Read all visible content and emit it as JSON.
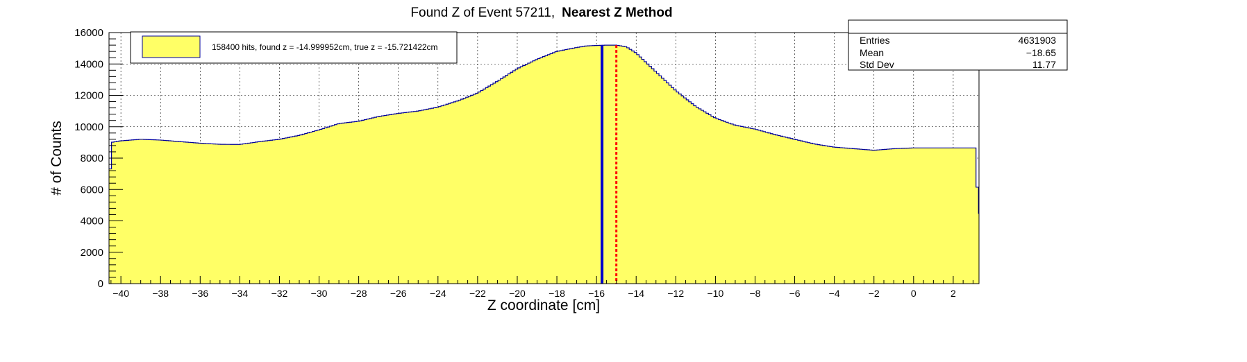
{
  "title": {
    "prefix": "Found Z of Event 57211,",
    "bold": "Nearest Z Method"
  },
  "legend": {
    "entry": "158400 hits, found z = -14.999952cm, true z = -15.721422cm"
  },
  "stats": {
    "rows": [
      {
        "label": "Entries",
        "value": "4631903"
      },
      {
        "label": "Mean",
        "value": "−18.65"
      },
      {
        "label": "Std Dev",
        "value": "11.77"
      }
    ]
  },
  "colors": {
    "fill": "#ffff66",
    "outline": "#000099",
    "found_line": "#0000cc",
    "true_line": "#ff0000"
  },
  "chart_data": {
    "type": "histogram",
    "xlabel": "Z coordinate [cm]",
    "ylabel": "# of Counts",
    "xlim": [
      -40.6,
      3.3
    ],
    "ylim": [
      0,
      16000
    ],
    "grid": true,
    "legend_position": "top-left",
    "stats_position": "top-right",
    "xticks": [
      -40,
      -38,
      -36,
      -34,
      -32,
      -30,
      -28,
      -26,
      -24,
      -22,
      -20,
      -18,
      -16,
      -14,
      -12,
      -10,
      -8,
      -6,
      -4,
      -2,
      0,
      2
    ],
    "yticks": [
      0,
      2000,
      4000,
      6000,
      8000,
      10000,
      12000,
      14000,
      16000
    ],
    "outline": {
      "x": [
        -40.6,
        -40.5,
        -40.0,
        -39.0,
        -38.0,
        -37.0,
        -36.0,
        -35.0,
        -34.0,
        -33.0,
        -32.0,
        -31.0,
        -30.0,
        -29.0,
        -28.0,
        -27.0,
        -26.0,
        -25.0,
        -24.0,
        -23.0,
        -22.0,
        -21.0,
        -20.0,
        -19.0,
        -18.0,
        -17.0,
        -16.5,
        -16.0,
        -15.5,
        -15.0,
        -14.5,
        -14.0,
        -13.5,
        -13.0,
        -12.5,
        -12.0,
        -11.0,
        -10.0,
        -9.0,
        -8.0,
        -7.0,
        -6.0,
        -5.0,
        -4.0,
        -3.0,
        -2.0,
        -1.0,
        0.0,
        1.0,
        2.0,
        3.1,
        3.3
      ],
      "y": [
        4500,
        9000,
        9100,
        9200,
        9150,
        9050,
        8950,
        8880,
        8870,
        9050,
        9200,
        9450,
        9800,
        10200,
        10350,
        10650,
        10850,
        11000,
        11250,
        11650,
        12150,
        12900,
        13700,
        14300,
        14800,
        15050,
        15150,
        15180,
        15200,
        15200,
        15100,
        14700,
        14100,
        13500,
        12900,
        12300,
        11300,
        10550,
        10100,
        9850,
        9500,
        9200,
        8900,
        8700,
        8600,
        8500,
        8600,
        8650,
        8650,
        8650,
        8650,
        4200
      ]
    },
    "found_z": -14.999952,
    "true_z": -15.721422,
    "series": [
      {
        "name": "158400 hits, found z = -14.999952cm, true z = -15.721422cm"
      }
    ],
    "stats": {
      "entries": 4631903,
      "mean": -18.65,
      "std_dev": 11.77
    }
  }
}
